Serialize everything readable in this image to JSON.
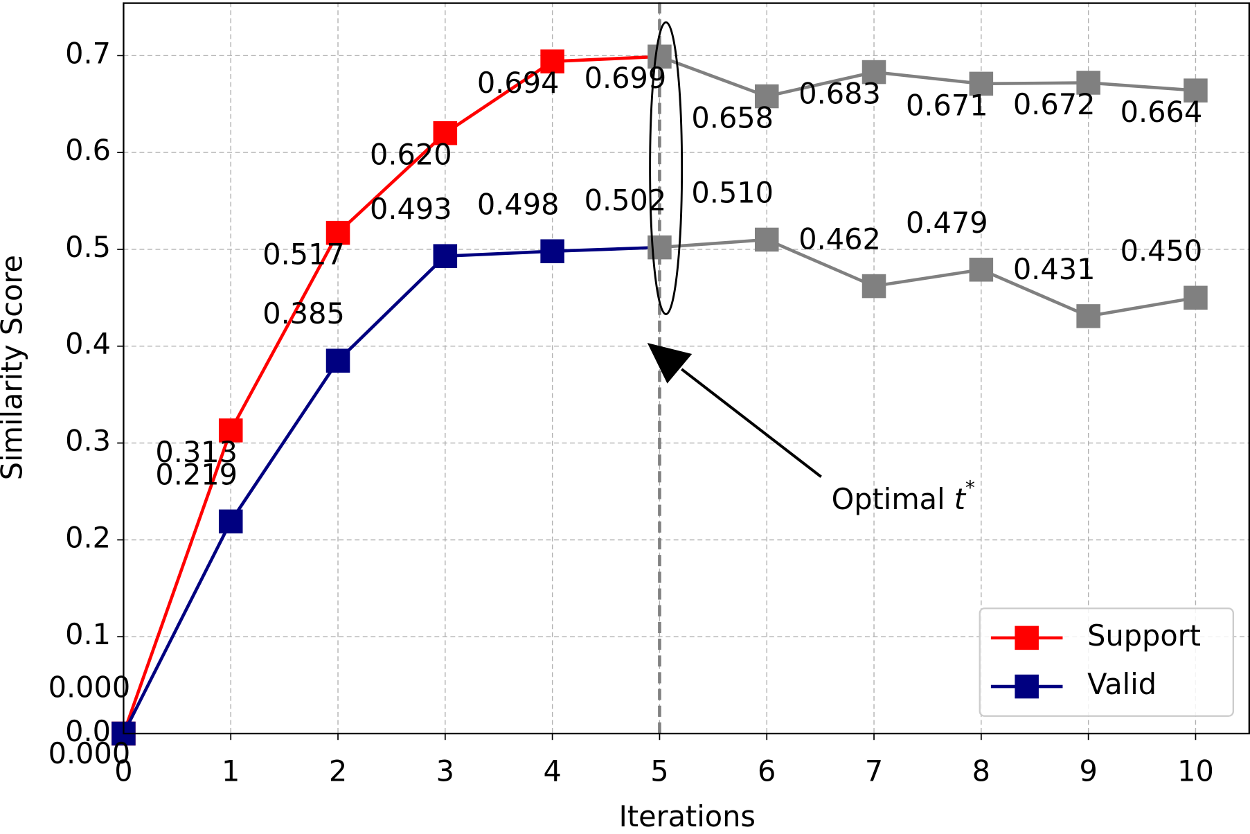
{
  "chart_data": {
    "type": "line",
    "x_label": "Iterations",
    "y_label": "Similarity Score",
    "x": [
      0,
      1,
      2,
      3,
      4,
      5,
      6,
      7,
      8,
      9,
      10
    ],
    "series": [
      {
        "name": "Support",
        "color": "#ff0000",
        "values": [
          0,
          0.313,
          0.517,
          0.62,
          0.694,
          0.699,
          0.658,
          0.683,
          0.671,
          0.672,
          0.664
        ],
        "value_labels": [
          "0.000",
          "0.313",
          "0.517",
          "0.620",
          "0.694",
          "0.699",
          "0.658",
          "0.683",
          "0.671",
          "0.672",
          "0.664"
        ]
      },
      {
        "name": "Valid",
        "color": "#000080",
        "values": [
          0,
          0.219,
          0.385,
          0.493,
          0.498,
          0.502,
          0.51,
          0.462,
          0.479,
          0.431,
          0.45
        ],
        "value_labels": [
          "0.000",
          "0.219",
          "0.385",
          "0.493",
          "0.498",
          "0.502",
          "0.510",
          "0.462",
          "0.479",
          "0.431",
          "0.450"
        ]
      }
    ],
    "optimal_x": 5,
    "after_optimal_color": "#808080",
    "annotation": [
      "Optimal ",
      "t",
      "*"
    ],
    "xlim": [
      0,
      10.5
    ],
    "xticks": [
      0,
      1,
      2,
      3,
      4,
      5,
      6,
      7,
      8,
      9,
      10
    ],
    "ylim": [
      0,
      0.755
    ],
    "yticks": [
      {
        "value": 0,
        "label": "0.0"
      },
      0.1,
      0.2,
      0.3,
      0.4,
      0.5,
      0.6,
      0.7
    ],
    "grid": true,
    "legend": "lower right"
  }
}
